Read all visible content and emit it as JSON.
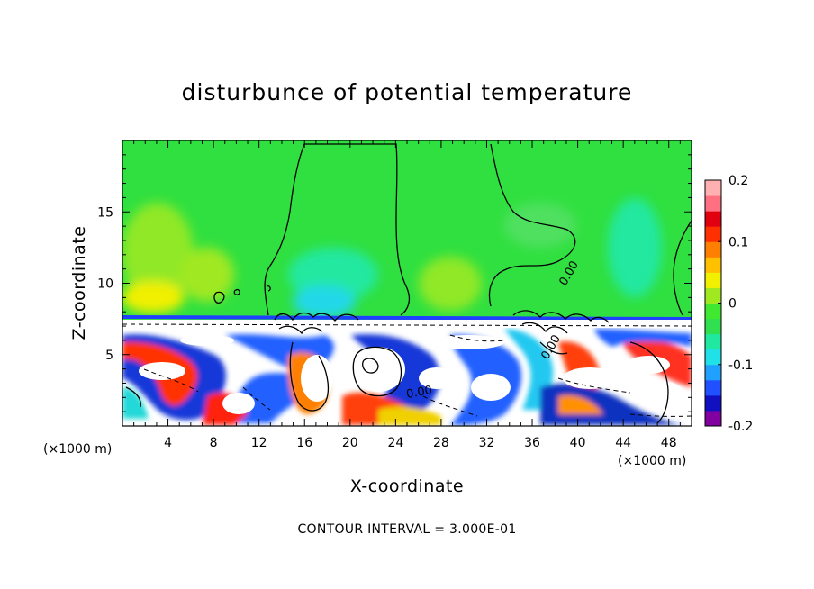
{
  "chart_data": {
    "type": "heatmap",
    "title": "disturbunce of potential temperature",
    "xlabel": "X-coordinate",
    "ylabel": "Z-coordinate",
    "x_unit_label": "(×1000 m)",
    "x_unit_label_bottom": "(×1000 m)",
    "xlim": [
      0,
      50
    ],
    "ylim": [
      0,
      20
    ],
    "x_ticks": [
      4,
      8,
      12,
      16,
      20,
      24,
      28,
      32,
      36,
      40,
      44,
      48
    ],
    "y_ticks": [
      5,
      10,
      15
    ],
    "colorbar": {
      "range": [
        -0.2,
        0.2
      ],
      "ticks": [
        "0.2",
        "0.1",
        "0",
        "-0.1",
        "-0.2"
      ],
      "tick_values": [
        0.2,
        0.1,
        0,
        -0.1,
        -0.2
      ],
      "colors": [
        "#8000a0",
        "#1010c0",
        "#2050ff",
        "#20a0ff",
        "#20e0e8",
        "#20e8a0",
        "#30e050",
        "#40e830",
        "#a0e820",
        "#f0f000",
        "#ffc000",
        "#ff8000",
        "#ff3000",
        "#e00010",
        "#ff7080",
        "#ffb0b0"
      ]
    },
    "contour_labels": [
      "0.00",
      "0.00",
      "0.00"
    ],
    "contour_interval_text": "CONTOUR INTERVAL = 3.000E-01",
    "grid": false
  }
}
